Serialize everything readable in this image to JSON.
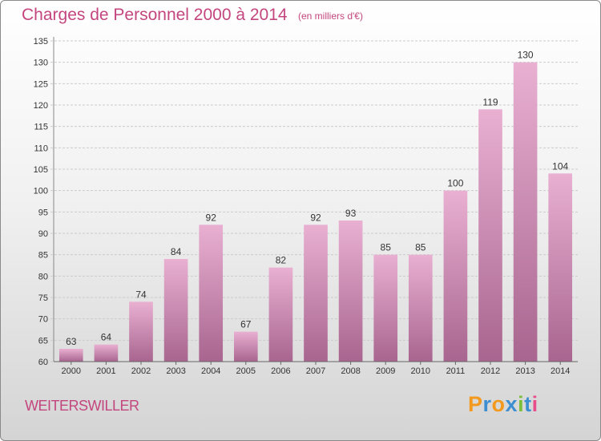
{
  "title": "Charges de Personnel 2000 à 2014",
  "unit_note": "(en milliers d'€)",
  "commune": "WEITERSWILLER",
  "brand": {
    "letters": [
      "P",
      "r",
      "o",
      "x",
      "i",
      "t",
      "i"
    ],
    "colors": [
      "#f39a1e",
      "#3d8fd1",
      "#f39a1e",
      "#3d8fd1",
      "#7cbf3a",
      "#3d8fd1",
      "#e84c8a"
    ]
  },
  "colors": {
    "accent": "#c4467e",
    "bar_light": "#e9b0d2",
    "bar_dark": "#a8658f"
  },
  "chart_data": {
    "type": "bar",
    "categories": [
      "2000",
      "2001",
      "2002",
      "2003",
      "2004",
      "2005",
      "2006",
      "2007",
      "2008",
      "2009",
      "2010",
      "2011",
      "2012",
      "2013",
      "2014"
    ],
    "values": [
      63,
      64,
      74,
      84,
      92,
      67,
      82,
      92,
      93,
      85,
      85,
      100,
      119,
      130,
      104
    ],
    "ylim": [
      60,
      135
    ],
    "yticks": [
      60,
      65,
      70,
      75,
      80,
      85,
      90,
      95,
      100,
      105,
      110,
      115,
      120,
      125,
      130,
      135
    ],
    "grid": true,
    "title": "Charges de Personnel 2000 à 2014",
    "xlabel": "",
    "ylabel": ""
  }
}
